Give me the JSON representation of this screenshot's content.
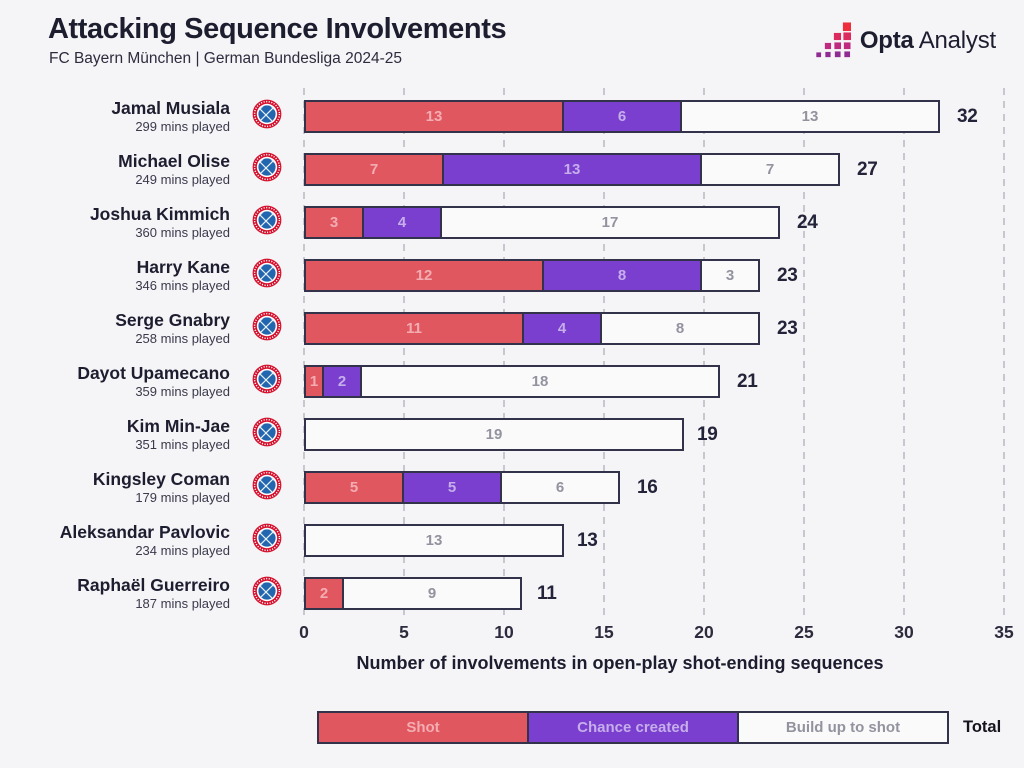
{
  "header": {
    "title": "Attacking Sequence Involvements",
    "subtitle": "FC Bayern München | German Bundesliga 2024-25"
  },
  "brand": {
    "bold": "Opta",
    "regular": "Analyst"
  },
  "colors": {
    "background": "#f5f4f6",
    "shot": "#e1575f",
    "chance_created": "#7b3fd0",
    "build_up_to_shot": "#fafafb",
    "bar_border": "#32324a",
    "text_dark": "#1d1d30",
    "gridline": "#c7c7d0",
    "logo_red": "#ef2e3d",
    "logo_purple": "#8f2b92"
  },
  "chart_data": {
    "type": "bar",
    "orientation": "horizontal",
    "stacked": true,
    "title": "Attacking Sequence Involvements",
    "subtitle": "FC Bayern München | German Bundesliga 2024-25",
    "xlabel": "Number of involvements in open-play shot-ending sequences",
    "xlim": [
      0,
      35
    ],
    "xticks": [
      0,
      5,
      10,
      15,
      20,
      25,
      30,
      35
    ],
    "grid": "dashed-vertical",
    "legend": [
      "Shot",
      "Chance created",
      "Build up to shot"
    ],
    "legend_total_label": "Total",
    "categories": [
      "Jamal Musiala",
      "Michael Olise",
      "Joshua Kimmich",
      "Harry Kane",
      "Serge Gnabry",
      "Dayot Upamecano",
      "Kim Min-Jae",
      "Kingsley Coman",
      "Aleksandar Pavlovic",
      "Raphaël Guerreiro"
    ],
    "series": [
      {
        "name": "Shot",
        "values": [
          13,
          7,
          3,
          12,
          11,
          1,
          0,
          5,
          0,
          2
        ]
      },
      {
        "name": "Chance created",
        "values": [
          6,
          13,
          4,
          8,
          4,
          2,
          0,
          5,
          0,
          0
        ]
      },
      {
        "name": "Build up to shot",
        "values": [
          13,
          7,
          17,
          3,
          8,
          18,
          19,
          6,
          13,
          9
        ]
      },
      {
        "name": "Total",
        "values": [
          32,
          27,
          24,
          23,
          23,
          21,
          19,
          16,
          13,
          11
        ]
      }
    ],
    "players": [
      {
        "name": "Jamal Musiala",
        "mins_played": "299 mins played",
        "shot": 13,
        "chance_created": 6,
        "build_up_to_shot": 13,
        "total": 32
      },
      {
        "name": "Michael Olise",
        "mins_played": "249 mins played",
        "shot": 7,
        "chance_created": 13,
        "build_up_to_shot": 7,
        "total": 27
      },
      {
        "name": "Joshua Kimmich",
        "mins_played": "360 mins played",
        "shot": 3,
        "chance_created": 4,
        "build_up_to_shot": 17,
        "total": 24
      },
      {
        "name": "Harry Kane",
        "mins_played": "346 mins played",
        "shot": 12,
        "chance_created": 8,
        "build_up_to_shot": 3,
        "total": 23
      },
      {
        "name": "Serge Gnabry",
        "mins_played": "258 mins played",
        "shot": 11,
        "chance_created": 4,
        "build_up_to_shot": 8,
        "total": 23
      },
      {
        "name": "Dayot Upamecano",
        "mins_played": "359 mins played",
        "shot": 1,
        "chance_created": 2,
        "build_up_to_shot": 18,
        "total": 21
      },
      {
        "name": "Kim Min-Jae",
        "mins_played": "351 mins played",
        "shot": 0,
        "chance_created": 0,
        "build_up_to_shot": 19,
        "total": 19
      },
      {
        "name": "Kingsley Coman",
        "mins_played": "179 mins played",
        "shot": 5,
        "chance_created": 5,
        "build_up_to_shot": 6,
        "total": 16
      },
      {
        "name": "Aleksandar Pavlovic",
        "mins_played": "234 mins played",
        "shot": 0,
        "chance_created": 0,
        "build_up_to_shot": 13,
        "total": 13
      },
      {
        "name": "Raphaël Guerreiro",
        "mins_played": "187 mins played",
        "shot": 2,
        "chance_created": 0,
        "build_up_to_shot": 9,
        "total": 11
      }
    ]
  }
}
